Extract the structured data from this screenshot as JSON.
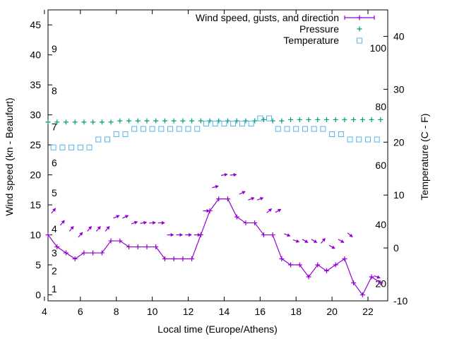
{
  "chart_data": {
    "type": "line",
    "xlabel": "Local time (Europe/Athens)",
    "ylabel": "Wind speed (kn - Beaufort)",
    "y2label": "Temperature (C - F)",
    "xlim": [
      4.2,
      23.1
    ],
    "ylim": [
      -1,
      47.5
    ],
    "y2lim": [
      -10,
      45
    ],
    "x_ticks": [
      4,
      6,
      8,
      10,
      12,
      14,
      16,
      18,
      20,
      22
    ],
    "y_ticks": [
      0,
      5,
      10,
      15,
      20,
      25,
      30,
      35,
      40,
      45
    ],
    "y2_ticks": [
      -10,
      0,
      10,
      20,
      30,
      40
    ],
    "beaufort_labels": [
      {
        "label": "1",
        "y": 1
      },
      {
        "label": "2",
        "y": 4
      },
      {
        "label": "3",
        "y": 7
      },
      {
        "label": "4",
        "y": 11
      },
      {
        "label": "5",
        "y": 17
      },
      {
        "label": "6",
        "y": 22
      },
      {
        "label": "7",
        "y": 28
      },
      {
        "label": "8",
        "y": 34
      },
      {
        "label": "9",
        "y": 41
      }
    ],
    "fahrenheit_labels": [
      {
        "label": "20",
        "y2": -6.7
      },
      {
        "label": "40",
        "y2": 4.4
      },
      {
        "label": "60",
        "y2": 15.6
      },
      {
        "label": "80",
        "y2": 26.7
      },
      {
        "label": "100",
        "y2": 37.8
      }
    ],
    "legend_position": "top-right",
    "series": [
      {
        "name": "Wind speed, gusts, and direction",
        "type": "line",
        "color": "#9400d3",
        "x": [
          4.2,
          4.7,
          5.2,
          5.7,
          6.2,
          6.7,
          7.2,
          7.7,
          8.2,
          8.7,
          9.2,
          9.7,
          10.2,
          10.7,
          11.2,
          11.7,
          12.2,
          12.7,
          13.2,
          13.7,
          14.2,
          14.7,
          15.2,
          15.7,
          16.2,
          16.7,
          17.2,
          17.7,
          18.2,
          18.7,
          19.2,
          19.7,
          20.2,
          20.7,
          21.2,
          21.7,
          22.2,
          22.7
        ],
        "y": [
          10,
          8,
          7,
          6,
          7,
          7,
          7,
          9,
          9,
          8,
          8,
          8,
          8,
          6,
          6,
          6,
          6,
          10,
          14,
          16,
          16,
          13,
          12,
          12,
          10,
          10,
          6,
          5,
          5,
          3,
          5,
          4,
          5,
          6,
          2,
          0,
          3,
          2
        ],
        "gusts": [
          {
            "x": 4.5,
            "y": 14,
            "dir": 40
          },
          {
            "x": 5.0,
            "y": 12,
            "dir": 40
          },
          {
            "x": 5.5,
            "y": 11,
            "dir": 40
          },
          {
            "x": 6.0,
            "y": 10,
            "dir": 40
          },
          {
            "x": 6.5,
            "y": 11,
            "dir": 40
          },
          {
            "x": 7.0,
            "y": 11,
            "dir": 40
          },
          {
            "x": 7.5,
            "y": 11,
            "dir": 40
          },
          {
            "x": 8.0,
            "y": 13,
            "dir": 65
          },
          {
            "x": 8.5,
            "y": 13,
            "dir": 65
          },
          {
            "x": 9.0,
            "y": 12,
            "dir": 70
          },
          {
            "x": 9.5,
            "y": 12,
            "dir": 80
          },
          {
            "x": 10.0,
            "y": 12,
            "dir": 85
          },
          {
            "x": 10.5,
            "y": 12,
            "dir": 90
          },
          {
            "x": 11.0,
            "y": 10,
            "dir": 90
          },
          {
            "x": 11.5,
            "y": 10,
            "dir": 90
          },
          {
            "x": 12.0,
            "y": 10,
            "dir": 90
          },
          {
            "x": 12.5,
            "y": 10,
            "dir": 90
          },
          {
            "x": 13.0,
            "y": 14,
            "dir": 90
          },
          {
            "x": 13.5,
            "y": 18,
            "dir": 75
          },
          {
            "x": 14.0,
            "y": 20,
            "dir": 80
          },
          {
            "x": 14.5,
            "y": 20,
            "dir": 85
          },
          {
            "x": 15.0,
            "y": 17,
            "dir": 65
          },
          {
            "x": 15.5,
            "y": 16,
            "dir": 70
          },
          {
            "x": 16.0,
            "y": 16,
            "dir": 70
          },
          {
            "x": 16.5,
            "y": 14,
            "dir": 50
          },
          {
            "x": 17.0,
            "y": 14,
            "dir": 60
          },
          {
            "x": 17.5,
            "y": 10,
            "dir": 110
          },
          {
            "x": 18.0,
            "y": 9,
            "dir": 110
          },
          {
            "x": 18.5,
            "y": 9,
            "dir": 120
          },
          {
            "x": 19.0,
            "y": 9,
            "dir": 120
          },
          {
            "x": 19.5,
            "y": 9,
            "dir": 40
          },
          {
            "x": 20.0,
            "y": 8,
            "dir": 120
          },
          {
            "x": 20.5,
            "y": 9,
            "dir": 120
          },
          {
            "x": 21.0,
            "y": 10,
            "dir": 130
          },
          {
            "x": 22.5,
            "y": 3,
            "dir": 110
          }
        ]
      },
      {
        "name": "Pressure",
        "type": "scatter",
        "marker": "plus",
        "color": "#009e73",
        "axis": "y",
        "x": [
          4.2,
          4.7,
          5.2,
          5.7,
          6.2,
          6.7,
          7.2,
          7.7,
          8.2,
          8.7,
          9.2,
          9.7,
          10.2,
          10.7,
          11.2,
          11.7,
          12.2,
          12.7,
          13.2,
          13.7,
          14.2,
          14.7,
          15.2,
          15.7,
          16.2,
          16.7,
          17.2,
          17.7,
          18.2,
          18.7,
          19.2,
          19.7,
          20.2,
          20.7,
          21.2,
          21.7,
          22.2,
          22.7
        ],
        "y": [
          28.8,
          28.8,
          28.8,
          28.8,
          28.8,
          28.8,
          28.8,
          28.8,
          29.0,
          29.0,
          29.0,
          29.0,
          29.0,
          29.0,
          29.0,
          29.0,
          29.0,
          29.0,
          29.0,
          29.0,
          29.0,
          29.0,
          29.0,
          29.0,
          29.2,
          29.0,
          29.0,
          29.2,
          29.2,
          29.2,
          29.2,
          29.2,
          29.2,
          29.2,
          29.2,
          29.2,
          29.2,
          29.2
        ]
      },
      {
        "name": "Temperature",
        "type": "scatter",
        "marker": "square",
        "color": "#56b4e9",
        "axis": "y2",
        "x": [
          4.5,
          5.0,
          5.5,
          6.0,
          6.5,
          7.0,
          7.5,
          8.0,
          8.5,
          9.0,
          9.5,
          10.0,
          10.5,
          11.0,
          11.5,
          12.0,
          12.5,
          13.0,
          13.5,
          14.0,
          14.5,
          15.0,
          15.5,
          16.0,
          16.5,
          17.0,
          17.5,
          18.0,
          18.5,
          19.0,
          19.5,
          20.0,
          20.5,
          21.0,
          21.5,
          22.0,
          22.5
        ],
        "y": [
          19,
          19,
          19,
          19,
          19,
          20.5,
          20.5,
          21.5,
          21.5,
          22.5,
          22.5,
          22.5,
          22.5,
          22.5,
          22.5,
          22.5,
          22.5,
          23.5,
          23.5,
          23.5,
          23.5,
          23.5,
          23.5,
          24.5,
          24.5,
          22.5,
          22.5,
          22.5,
          22.5,
          22.5,
          22.5,
          21.5,
          21.5,
          20.5,
          20.5,
          20.5,
          20.5
        ]
      }
    ]
  }
}
